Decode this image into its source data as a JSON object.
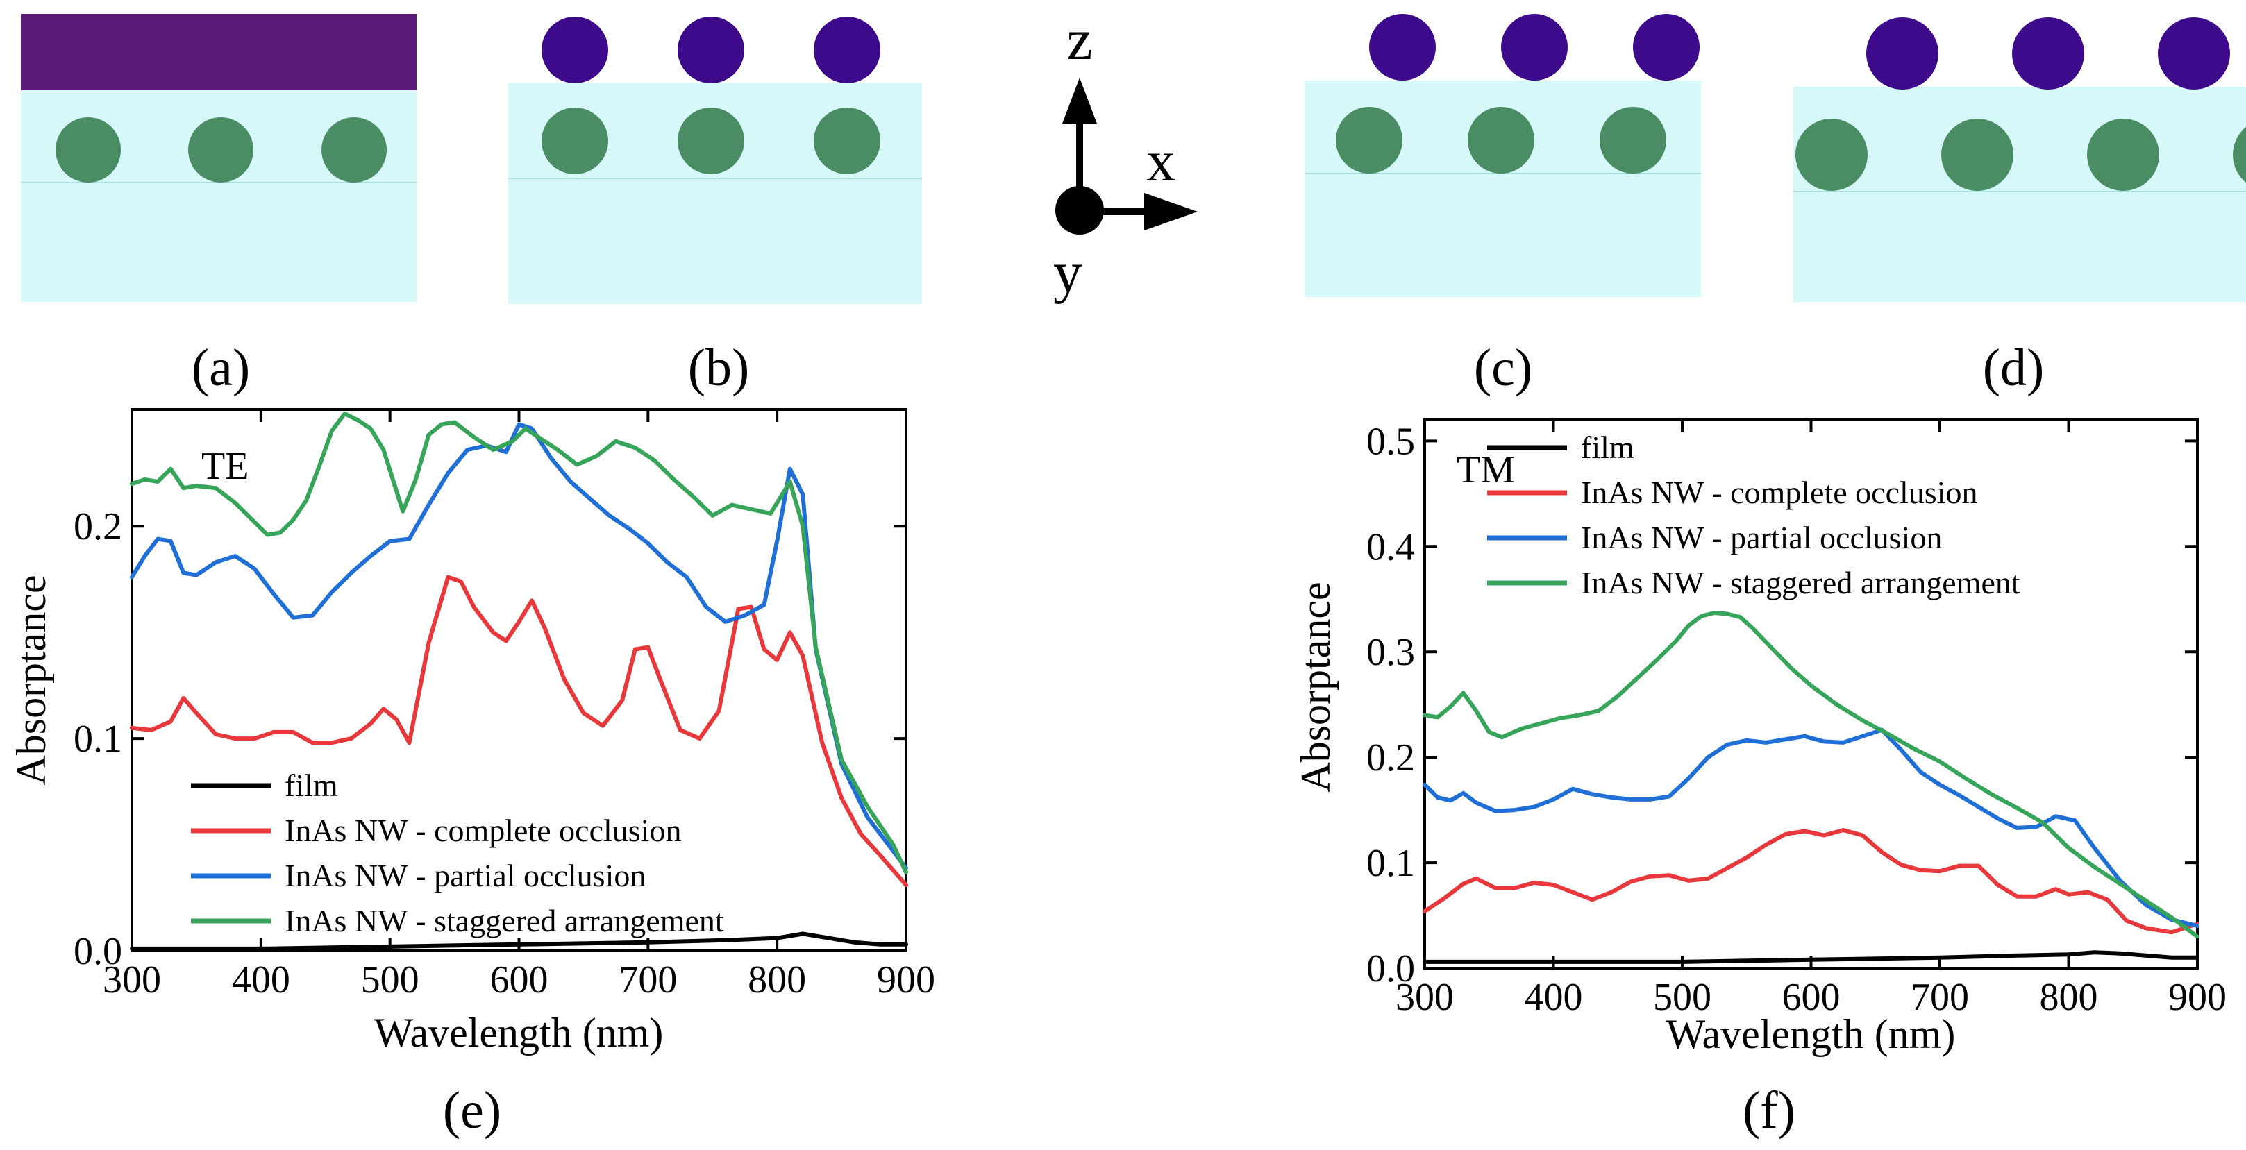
{
  "figure": {
    "panel_labels": {
      "a": "(a)",
      "b": "(b)",
      "c": "(c)",
      "d": "(d)",
      "e": "(e)",
      "f": "(f)"
    },
    "axes_glyph": {
      "z": "z",
      "x": "x",
      "y": "y"
    }
  },
  "colors": {
    "substrate": "#d6f8f8",
    "film": "#5a1a78",
    "top_wire": "#3c0a8a",
    "buried_wire": "#4a8c64",
    "series_film": "#000000",
    "series_complete": "#e8383c",
    "series_partial": "#1f6fd6",
    "series_staggered": "#36a55a"
  },
  "chart_data": [
    {
      "type": "line",
      "panel": "(e)",
      "annotation": "TE",
      "title": "",
      "xlabel": "Wavelength (nm)",
      "ylabel": "Absorptance",
      "xlim": [
        300,
        900
      ],
      "ylim": [
        0,
        0.255
      ],
      "xticks": [
        300,
        400,
        500,
        600,
        700,
        800,
        900
      ],
      "yticks": [
        0.0,
        0.1,
        0.2
      ],
      "ytick_labels": [
        "0.0",
        "0.1",
        "0.2"
      ],
      "legend_position": "lower-left",
      "series": [
        {
          "name": "film",
          "color": "#000000",
          "x": [
            300,
            400,
            500,
            600,
            700,
            760,
            800,
            820,
            840,
            860,
            880,
            900
          ],
          "y": [
            0.001,
            0.001,
            0.002,
            0.003,
            0.004,
            0.005,
            0.006,
            0.008,
            0.006,
            0.004,
            0.003,
            0.003
          ]
        },
        {
          "name": "InAs NW - complete occlusion",
          "color": "#e8383c",
          "x": [
            300,
            315,
            330,
            340,
            350,
            365,
            380,
            395,
            410,
            425,
            440,
            455,
            470,
            485,
            495,
            505,
            515,
            530,
            545,
            555,
            565,
            580,
            590,
            600,
            610,
            620,
            635,
            650,
            665,
            680,
            690,
            700,
            710,
            725,
            740,
            755,
            770,
            780,
            790,
            800,
            810,
            820,
            835,
            850,
            865,
            880,
            900
          ],
          "y": [
            0.105,
            0.104,
            0.108,
            0.119,
            0.112,
            0.102,
            0.1,
            0.1,
            0.103,
            0.103,
            0.098,
            0.098,
            0.1,
            0.107,
            0.114,
            0.109,
            0.098,
            0.145,
            0.176,
            0.174,
            0.162,
            0.15,
            0.146,
            0.155,
            0.165,
            0.152,
            0.128,
            0.112,
            0.106,
            0.118,
            0.142,
            0.143,
            0.127,
            0.104,
            0.1,
            0.113,
            0.161,
            0.162,
            0.142,
            0.137,
            0.15,
            0.139,
            0.098,
            0.072,
            0.055,
            0.045,
            0.031
          ]
        },
        {
          "name": "InAs NW - partial occlusion",
          "color": "#1f6fd6",
          "x": [
            300,
            310,
            320,
            330,
            340,
            350,
            365,
            380,
            395,
            410,
            425,
            440,
            455,
            470,
            485,
            500,
            515,
            530,
            545,
            560,
            575,
            590,
            600,
            610,
            625,
            640,
            655,
            670,
            685,
            700,
            715,
            730,
            745,
            760,
            775,
            790,
            800,
            810,
            820,
            830,
            850,
            870,
            890,
            900
          ],
          "y": [
            0.176,
            0.186,
            0.194,
            0.193,
            0.178,
            0.177,
            0.183,
            0.186,
            0.18,
            0.168,
            0.157,
            0.158,
            0.169,
            0.178,
            0.186,
            0.193,
            0.194,
            0.21,
            0.225,
            0.236,
            0.238,
            0.235,
            0.248,
            0.246,
            0.232,
            0.221,
            0.213,
            0.205,
            0.199,
            0.192,
            0.183,
            0.176,
            0.162,
            0.155,
            0.158,
            0.163,
            0.193,
            0.227,
            0.215,
            0.142,
            0.088,
            0.063,
            0.047,
            0.039
          ]
        },
        {
          "name": "InAs NW - staggered arrangement",
          "color": "#36a55a",
          "x": [
            300,
            310,
            320,
            330,
            340,
            350,
            365,
            380,
            395,
            405,
            415,
            425,
            435,
            445,
            455,
            465,
            475,
            485,
            495,
            510,
            520,
            530,
            540,
            550,
            565,
            580,
            595,
            605,
            615,
            630,
            645,
            660,
            675,
            690,
            705,
            720,
            735,
            750,
            765,
            780,
            795,
            810,
            820,
            830,
            850,
            870,
            890,
            900
          ],
          "y": [
            0.22,
            0.222,
            0.221,
            0.227,
            0.218,
            0.219,
            0.218,
            0.211,
            0.202,
            0.196,
            0.197,
            0.203,
            0.212,
            0.228,
            0.245,
            0.253,
            0.25,
            0.246,
            0.236,
            0.207,
            0.222,
            0.243,
            0.248,
            0.249,
            0.242,
            0.236,
            0.24,
            0.246,
            0.242,
            0.236,
            0.229,
            0.233,
            0.24,
            0.237,
            0.231,
            0.222,
            0.214,
            0.205,
            0.21,
            0.208,
            0.206,
            0.221,
            0.2,
            0.143,
            0.09,
            0.068,
            0.05,
            0.037
          ]
        }
      ]
    },
    {
      "type": "line",
      "panel": "(f)",
      "annotation": "TM",
      "title": "",
      "xlabel": "Wavelength (nm)",
      "ylabel": "Absorptance",
      "xlim": [
        300,
        900
      ],
      "ylim": [
        0,
        0.52
      ],
      "xticks": [
        300,
        400,
        500,
        600,
        700,
        800,
        900
      ],
      "yticks": [
        0.0,
        0.1,
        0.2,
        0.3,
        0.4,
        0.5
      ],
      "ytick_labels": [
        "0.0",
        "0.1",
        "0.2",
        "0.3",
        "0.4",
        "0.5"
      ],
      "legend_position": "top-left",
      "series": [
        {
          "name": "film",
          "color": "#000000",
          "x": [
            300,
            400,
            500,
            600,
            700,
            760,
            800,
            820,
            840,
            860,
            880,
            900
          ],
          "y": [
            0.006,
            0.006,
            0.006,
            0.008,
            0.01,
            0.012,
            0.013,
            0.015,
            0.014,
            0.012,
            0.01,
            0.01
          ]
        },
        {
          "name": "InAs NW - complete occlusion",
          "color": "#e8383c",
          "x": [
            300,
            315,
            330,
            340,
            355,
            370,
            385,
            400,
            415,
            430,
            445,
            460,
            475,
            490,
            505,
            520,
            535,
            550,
            565,
            580,
            595,
            610,
            625,
            640,
            655,
            670,
            685,
            700,
            715,
            730,
            745,
            760,
            775,
            790,
            800,
            815,
            830,
            845,
            860,
            880,
            900
          ],
          "y": [
            0.054,
            0.066,
            0.08,
            0.085,
            0.076,
            0.076,
            0.081,
            0.079,
            0.072,
            0.065,
            0.072,
            0.082,
            0.087,
            0.088,
            0.083,
            0.085,
            0.095,
            0.105,
            0.117,
            0.127,
            0.13,
            0.126,
            0.131,
            0.126,
            0.11,
            0.098,
            0.093,
            0.092,
            0.097,
            0.097,
            0.079,
            0.068,
            0.068,
            0.075,
            0.07,
            0.072,
            0.065,
            0.045,
            0.038,
            0.034,
            0.042
          ]
        },
        {
          "name": "InAs NW - partial occlusion",
          "color": "#1f6fd6",
          "x": [
            300,
            310,
            320,
            330,
            340,
            355,
            370,
            385,
            400,
            415,
            430,
            445,
            460,
            475,
            490,
            505,
            520,
            535,
            550,
            565,
            580,
            595,
            610,
            625,
            640,
            655,
            670,
            685,
            700,
            715,
            730,
            745,
            760,
            775,
            790,
            805,
            820,
            840,
            860,
            880,
            900
          ],
          "y": [
            0.174,
            0.162,
            0.159,
            0.166,
            0.157,
            0.149,
            0.15,
            0.153,
            0.16,
            0.17,
            0.165,
            0.162,
            0.16,
            0.16,
            0.163,
            0.18,
            0.2,
            0.212,
            0.216,
            0.214,
            0.217,
            0.22,
            0.215,
            0.214,
            0.22,
            0.226,
            0.207,
            0.186,
            0.174,
            0.164,
            0.153,
            0.142,
            0.133,
            0.134,
            0.144,
            0.14,
            0.114,
            0.083,
            0.06,
            0.046,
            0.04
          ]
        },
        {
          "name": "InAs NW - staggered arrangement",
          "color": "#36a55a",
          "x": [
            300,
            310,
            320,
            330,
            340,
            350,
            360,
            375,
            390,
            405,
            420,
            435,
            450,
            465,
            480,
            495,
            505,
            515,
            525,
            535,
            545,
            555,
            570,
            585,
            600,
            620,
            640,
            660,
            680,
            700,
            720,
            740,
            760,
            780,
            800,
            820,
            840,
            860,
            880,
            900
          ],
          "y": [
            0.24,
            0.238,
            0.248,
            0.261,
            0.244,
            0.224,
            0.219,
            0.227,
            0.232,
            0.237,
            0.24,
            0.244,
            0.258,
            0.275,
            0.292,
            0.31,
            0.325,
            0.334,
            0.337,
            0.336,
            0.333,
            0.322,
            0.303,
            0.284,
            0.268,
            0.25,
            0.235,
            0.222,
            0.208,
            0.196,
            0.18,
            0.165,
            0.152,
            0.138,
            0.114,
            0.096,
            0.08,
            0.064,
            0.048,
            0.03
          ]
        }
      ]
    }
  ]
}
